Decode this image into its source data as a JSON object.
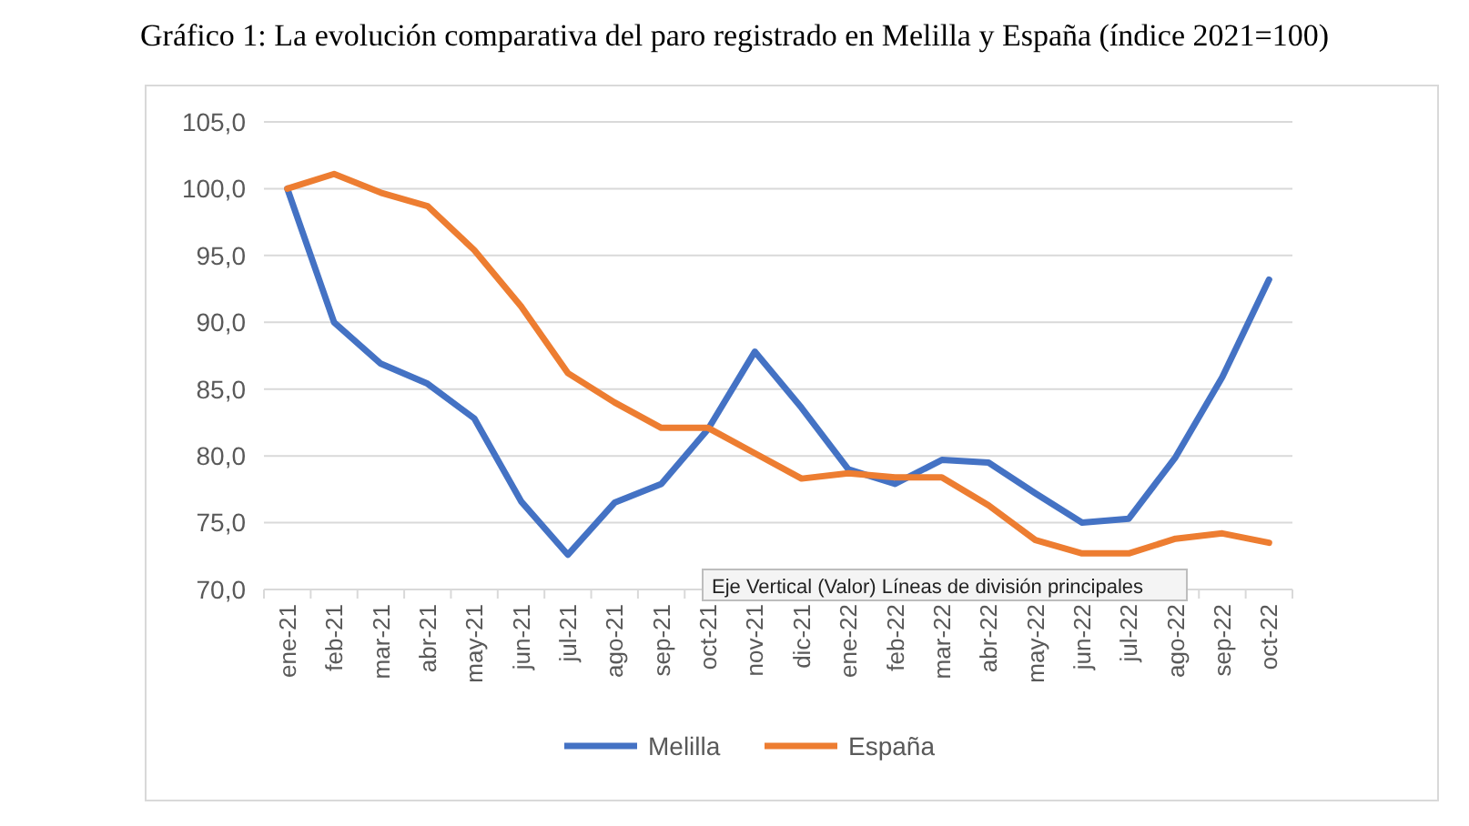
{
  "chart_data": {
    "type": "line",
    "title": "Gráfico 1: La evolución comparativa del paro registrado en Melilla y España (índice 2021=100)",
    "categories": [
      "ene-21",
      "feb-21",
      "mar-21",
      "abr-21",
      "may-21",
      "jun-21",
      "jul-21",
      "ago-21",
      "sep-21",
      "oct-21",
      "nov-21",
      "dic-21",
      "ene-22",
      "feb-22",
      "mar-22",
      "abr-22",
      "may-22",
      "jun-22",
      "jul-22",
      "ago-22",
      "sep-22",
      "oct-22"
    ],
    "series": [
      {
        "name": "Melilla",
        "color": "#4472c4",
        "values": [
          100,
          90,
          86.9,
          85.4,
          82.8,
          76.6,
          72.6,
          76.5,
          77.9,
          82,
          87.8,
          83.6,
          79,
          77.9,
          79.7,
          79.5,
          77.2,
          75,
          75.3,
          79.9,
          85.9,
          93.2
        ]
      },
      {
        "name": "España",
        "color": "#ed7d31",
        "values": [
          100,
          101.1,
          99.7,
          98.7,
          95.4,
          91.2,
          86.2,
          84,
          82.1,
          82.1,
          80.2,
          78.3,
          78.7,
          78.4,
          78.4,
          76.3,
          73.7,
          72.7,
          72.7,
          73.8,
          74.2,
          73.5
        ]
      }
    ],
    "ylim": [
      70,
      105
    ],
    "yticks": [
      {
        "value": 70,
        "label": "70,0"
      },
      {
        "value": 75,
        "label": "75,0"
      },
      {
        "value": 80,
        "label": "80,0"
      },
      {
        "value": 85,
        "label": "85,0"
      },
      {
        "value": 90,
        "label": "90,0"
      },
      {
        "value": 95,
        "label": "95,0"
      },
      {
        "value": 100,
        "label": "100,0"
      },
      {
        "value": 105,
        "label": "105,0"
      }
    ],
    "grid": "y",
    "legend": "bottom",
    "marker": "none",
    "line_style": "solid",
    "annotations": [
      "Eje Vertical (Valor)  Líneas de división principales"
    ]
  }
}
